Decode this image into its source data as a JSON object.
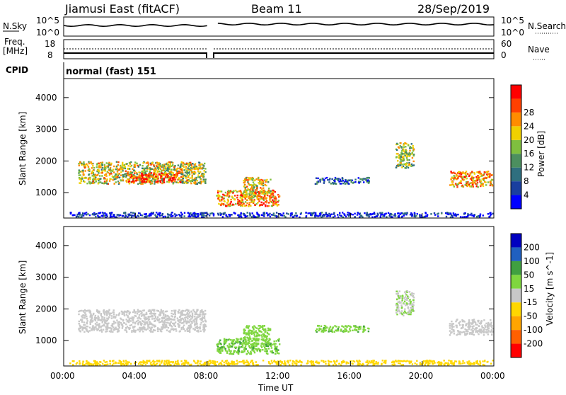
{
  "header": {
    "radar": "Jiamusi East (fitACF)",
    "beam": "Beam 11",
    "date": "28/Sep/2019"
  },
  "top_panel": {
    "left_label": "N.Sky",
    "right_label": "N.Search",
    "left_ticks": [
      "10^5",
      "10^0"
    ],
    "right_ticks": [
      "10^5",
      "10^0"
    ]
  },
  "freq_panel": {
    "left_label_1": "Freq.",
    "left_label_2": "[MHz]",
    "left_ticks": [
      "18",
      "8"
    ],
    "right_label": "Nave",
    "right_ticks": [
      "60",
      "0"
    ]
  },
  "cpid": {
    "label": "CPID",
    "value": "normal (fast) 151"
  },
  "colors": {
    "power_scale": [
      "#0000ff",
      "#1a3f9f",
      "#2f6f7f",
      "#4c8f5f",
      "#7fbf3f",
      "#f0d000",
      "#ff8c00",
      "#ff4000",
      "#ff0000"
    ],
    "velocity_scale": [
      "#ff0000",
      "#ff6000",
      "#ffa500",
      "#ffd700",
      "#c8c8c8",
      "#7fd63f",
      "#40a040",
      "#2060c0",
      "#0000c0"
    ]
  },
  "chart_data": [
    {
      "type": "heatmap",
      "title": "Power",
      "ylabel": "Slant Range [km]",
      "yticks": [
        "1000",
        "2000",
        "3000",
        "4000"
      ],
      "ylim": [
        200,
        4600
      ],
      "xlim_hours": [
        0,
        24
      ],
      "colorbar": {
        "label": "Power [dB]",
        "ticks": [
          "4",
          "8",
          "12",
          "16",
          "20",
          "24",
          "28"
        ]
      },
      "regions": [
        {
          "t0": 0.8,
          "t1": 7.9,
          "r0": 1300,
          "r1": 2000,
          "level": 0.55
        },
        {
          "t0": 3.5,
          "t1": 6.5,
          "r0": 1350,
          "r1": 1650,
          "level": 0.85
        },
        {
          "t0": 8.5,
          "t1": 12.0,
          "r0": 600,
          "r1": 1100,
          "level": 0.7
        },
        {
          "t0": 10.0,
          "t1": 11.5,
          "r0": 900,
          "r1": 1500,
          "level": 0.6
        },
        {
          "t0": 14.0,
          "t1": 17.0,
          "r0": 1300,
          "r1": 1500,
          "level": 0.2
        },
        {
          "t0": 18.5,
          "t1": 19.5,
          "r0": 1800,
          "r1": 2600,
          "level": 0.5
        },
        {
          "t0": 21.5,
          "t1": 23.9,
          "r0": 1200,
          "r1": 1700,
          "level": 0.7
        },
        {
          "t0": 0.3,
          "t1": 23.9,
          "r0": 250,
          "r1": 400,
          "level": 0.1
        }
      ]
    },
    {
      "type": "heatmap",
      "title": "Velocity",
      "ylabel": "Slant Range [km]",
      "xlabel": "Time UT",
      "xticks": [
        "00:00",
        "04:00",
        "08:00",
        "12:00",
        "16:00",
        "20:00",
        "00:00"
      ],
      "yticks": [
        "1000",
        "2000",
        "3000",
        "4000"
      ],
      "ylim": [
        200,
        4600
      ],
      "xlim_hours": [
        0,
        24
      ],
      "colorbar": {
        "label": "Velocity [m s^-1]",
        "ticks": [
          "200",
          "100",
          "50",
          "15",
          "-15",
          "-50",
          "-100",
          "-200"
        ]
      },
      "regions": [
        {
          "t0": 0.8,
          "t1": 7.9,
          "r0": 1300,
          "r1": 2000,
          "v": 0
        },
        {
          "t0": 8.5,
          "t1": 12.0,
          "r0": 600,
          "r1": 1100,
          "v": 40
        },
        {
          "t0": 10.0,
          "t1": 11.5,
          "r0": 900,
          "r1": 1500,
          "v": 30
        },
        {
          "t0": 14.0,
          "t1": 17.0,
          "r0": 1300,
          "r1": 1500,
          "v": 40
        },
        {
          "t0": 18.5,
          "t1": 19.5,
          "r0": 1800,
          "r1": 2600,
          "v": 10
        },
        {
          "t0": 21.5,
          "t1": 23.9,
          "r0": 1200,
          "r1": 1700,
          "v": 0
        },
        {
          "t0": 0.3,
          "t1": 23.9,
          "r0": 250,
          "r1": 400,
          "v": -30
        }
      ]
    }
  ]
}
